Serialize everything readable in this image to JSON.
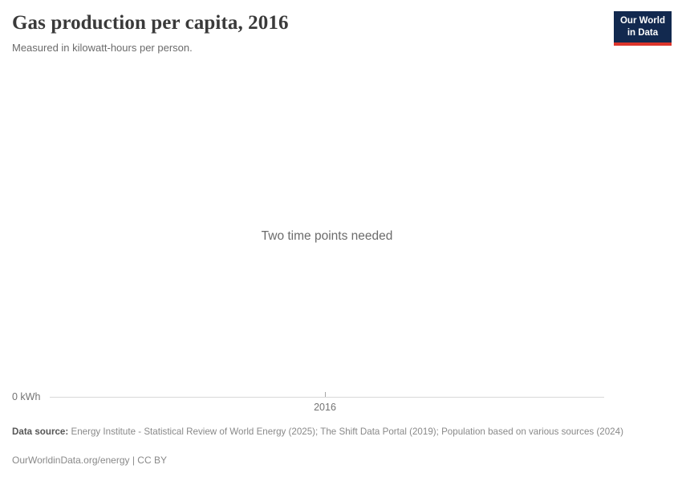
{
  "chart_data": {
    "type": "line",
    "title": "Gas production per capita, 2016",
    "subtitle": "Measured in kilowatt-hours per person.",
    "message": "Two time points needed",
    "x_ticks": [
      "2016"
    ],
    "y_ticks": [
      "0 kWh"
    ],
    "series": [],
    "grid": false,
    "legend": false
  },
  "logo": {
    "line1": "Our World",
    "line2": "in Data"
  },
  "footer": {
    "data_source_label": "Data source:",
    "data_source_text": "Energy Institute - Statistical Review of World Energy (2025); The Shift Data Portal (2019); Population based on various sources (2024)",
    "license_line": "OurWorldinData.org/energy | CC BY"
  },
  "colors": {
    "logo-navy": "#12294f",
    "logo-red": "#dc352b",
    "axis-line": "#d9d9d9",
    "tick": "#a6a6a6",
    "title-text": "#3a3a3a",
    "muted-text": "#6b6b6b",
    "axis-text": "#737373",
    "footer-text": "#898989"
  }
}
